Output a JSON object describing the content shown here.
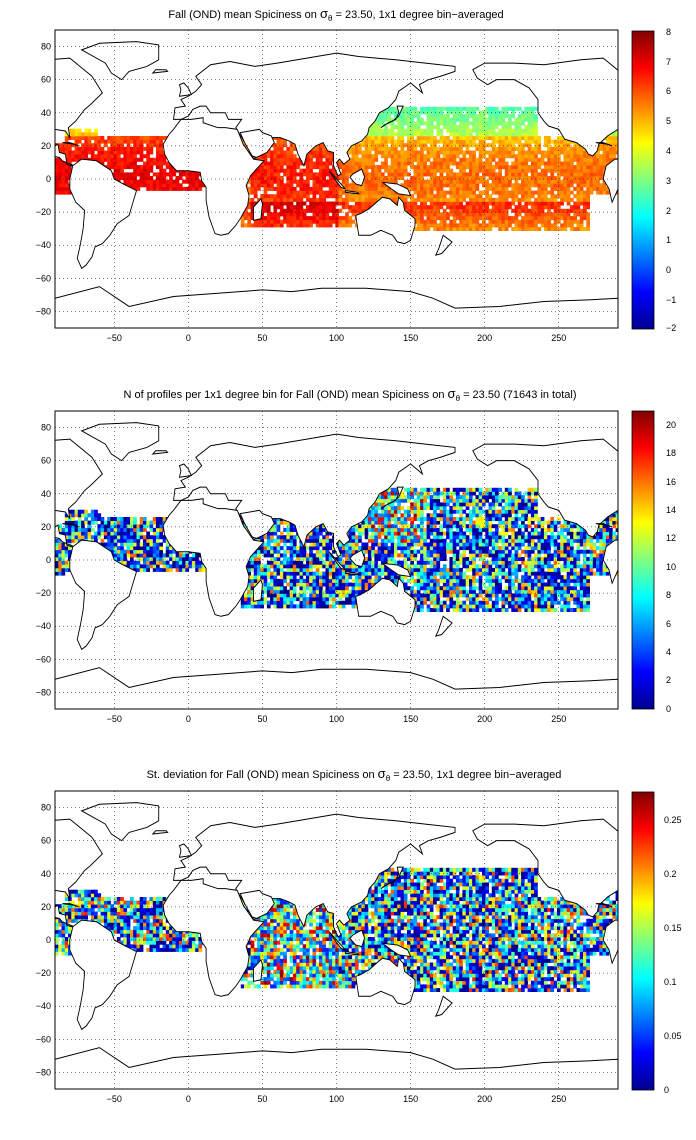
{
  "panels": [
    {
      "id": "mean",
      "title_pre": "Fall (OND) mean Spiciness on ",
      "title_sigma": "σ",
      "title_sub": "θ",
      "title_post": " = 23.50, 1x1 degree bin−averaged",
      "colorbar_ticks": [
        "8",
        "7",
        "6",
        "5",
        "4",
        "3",
        "2",
        "1",
        "0",
        "−1",
        "−2"
      ],
      "colorbar_range": [
        -2,
        8
      ]
    },
    {
      "id": "count",
      "title_pre": "N of profiles per 1x1 degree bin for Fall (OND) mean Spiciness on ",
      "title_sigma": "σ",
      "title_sub": "θ",
      "title_post": " = 23.50 (71643 in total)",
      "colorbar_ticks": [
        "20",
        "18",
        "16",
        "14",
        "12",
        "10",
        "8",
        "6",
        "4",
        "2",
        "0"
      ],
      "colorbar_range": [
        0,
        21
      ]
    },
    {
      "id": "std",
      "title_pre": "St. deviation for Fall (OND) mean Spiciness on ",
      "title_sigma": "σ",
      "title_sub": "θ",
      "title_post": " = 23.50, 1x1 degree bin−averaged",
      "colorbar_ticks": [
        "0.25",
        "0.2",
        "0.15",
        "0.1",
        "0.05",
        "0"
      ],
      "colorbar_range": [
        0,
        0.275
      ]
    }
  ],
  "axes": {
    "x_ticks": [
      "−50",
      "0",
      "50",
      "100",
      "150",
      "200",
      "250"
    ],
    "y_ticks": [
      "80",
      "60",
      "40",
      "20",
      "0",
      "−20",
      "−40",
      "−60",
      "−80"
    ],
    "xlim": [
      -90,
      290
    ],
    "ylim": [
      -90,
      90
    ]
  },
  "colors": {
    "jet_low": "#00008f",
    "jet_mid": "#7fff7f",
    "jet_high": "#800000",
    "land_line": "#000000",
    "grid": "#000000"
  }
}
